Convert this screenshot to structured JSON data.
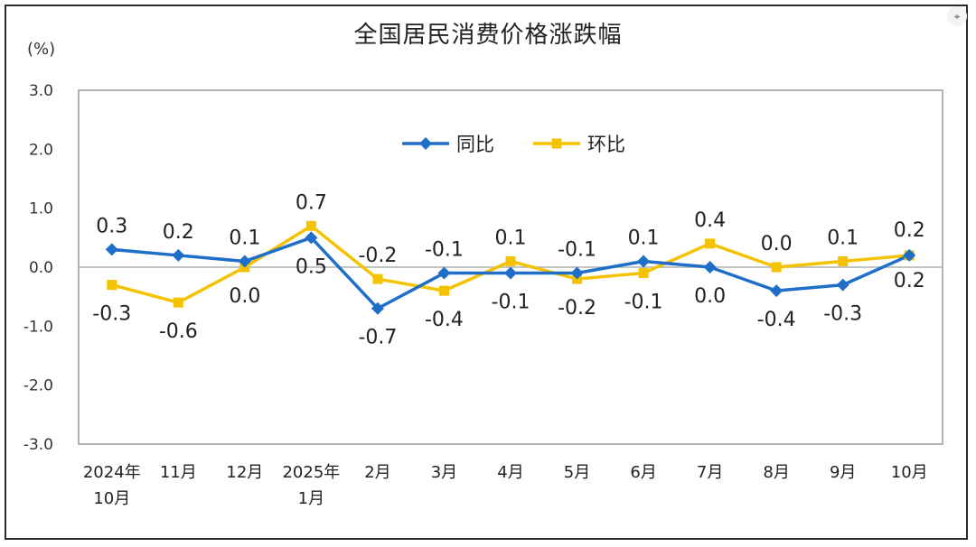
{
  "chart_data": {
    "type": "line",
    "title": "全国居民消费价格涨跌幅",
    "ylabel": "(%)",
    "ylim": [
      -3.0,
      3.0
    ],
    "yticks": [
      "3.0",
      "2.0",
      "1.0",
      "0.0",
      "-1.0",
      "-2.0",
      "-3.0"
    ],
    "categories": [
      [
        "2024年",
        "10月"
      ],
      [
        "11月"
      ],
      [
        "12月"
      ],
      [
        "2025年",
        "1月"
      ],
      [
        "2月"
      ],
      [
        "3月"
      ],
      [
        "4月"
      ],
      [
        "5月"
      ],
      [
        "6月"
      ],
      [
        "7月"
      ],
      [
        "8月"
      ],
      [
        "9月"
      ],
      [
        "10月"
      ]
    ],
    "series": [
      {
        "name": "同比",
        "color": "#1f6fc9",
        "marker": "diamond",
        "values": [
          0.3,
          0.2,
          0.1,
          0.5,
          -0.7,
          -0.1,
          -0.1,
          -0.1,
          0.1,
          0.0,
          -0.4,
          -0.3,
          0.2
        ],
        "labels": [
          "0.3",
          "0.2",
          "0.1",
          "0.5",
          "-0.7",
          "-0.1",
          "-0.1",
          "-0.1",
          "0.1",
          "0.0",
          "-0.4",
          "-0.3",
          "0.2"
        ]
      },
      {
        "name": "环比",
        "color": "#f5c200",
        "marker": "square",
        "values": [
          -0.3,
          -0.6,
          0.0,
          0.7,
          -0.2,
          -0.4,
          0.1,
          -0.2,
          -0.1,
          0.4,
          0.0,
          0.1,
          0.2
        ],
        "labels": [
          "-0.3",
          "-0.6",
          "0.0",
          "0.7",
          "-0.2",
          "-0.4",
          "0.1",
          "-0.2",
          "-0.1",
          "0.4",
          "0.0",
          "0.1",
          "0.2"
        ]
      }
    ],
    "grid": false,
    "legend": "top-center"
  },
  "ui": {
    "corner_icon": "focus-icon",
    "corner_glyph": "⌖"
  }
}
